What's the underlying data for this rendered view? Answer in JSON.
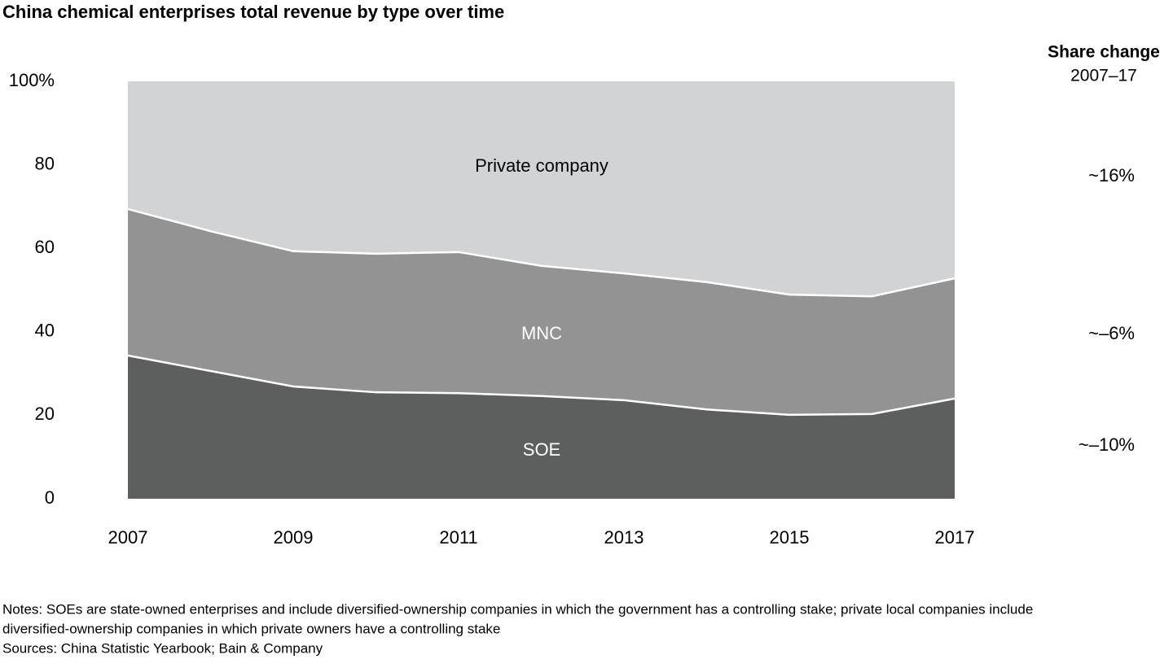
{
  "chart_data": {
    "type": "stacked_area",
    "title": "China chemical enterprises total revenue by type over time",
    "x": [
      2007,
      2008,
      2009,
      2010,
      2011,
      2012,
      2013,
      2014,
      2015,
      2016,
      2017
    ],
    "xlim": [
      2007,
      2017
    ],
    "xticks": [
      2007,
      2009,
      2011,
      2013,
      2015,
      2017
    ],
    "ylim": [
      0,
      100
    ],
    "yticks": [
      0,
      20,
      40,
      60,
      80,
      {
        "value": 100,
        "label": "100%"
      }
    ],
    "series": [
      {
        "name": "SOE",
        "color": "#5d5f5e",
        "values": [
          34.3,
          30.6,
          26.9,
          25.5,
          25.3,
          24.6,
          23.6,
          21.4,
          20.1,
          20.3,
          24.0
        ]
      },
      {
        "name": "MNC",
        "color": "#939393",
        "values": [
          35.1,
          33.5,
          32.4,
          33.2,
          33.8,
          31.2,
          30.4,
          30.5,
          28.8,
          28.2,
          28.8
        ]
      },
      {
        "name": "Private company",
        "color": "#d2d3d5",
        "values": [
          30.6,
          35.9,
          40.7,
          41.3,
          40.9,
          44.2,
          46.0,
          48.1,
          51.1,
          51.5,
          47.2
        ]
      }
    ],
    "share_change": {
      "title": "Share change",
      "subtitle": "2007–17",
      "labels": [
        "~–10%",
        "~–6%",
        "~16%"
      ]
    },
    "notes": [
      "Notes: SOEs are state-owned enterprises and include diversified-ownership companies in which the government has a controlling stake; private local companies include",
      "diversified-ownership companies in which private owners have a controlling stake"
    ],
    "sources": "Sources: China Statistic Yearbook; Bain & Company"
  }
}
